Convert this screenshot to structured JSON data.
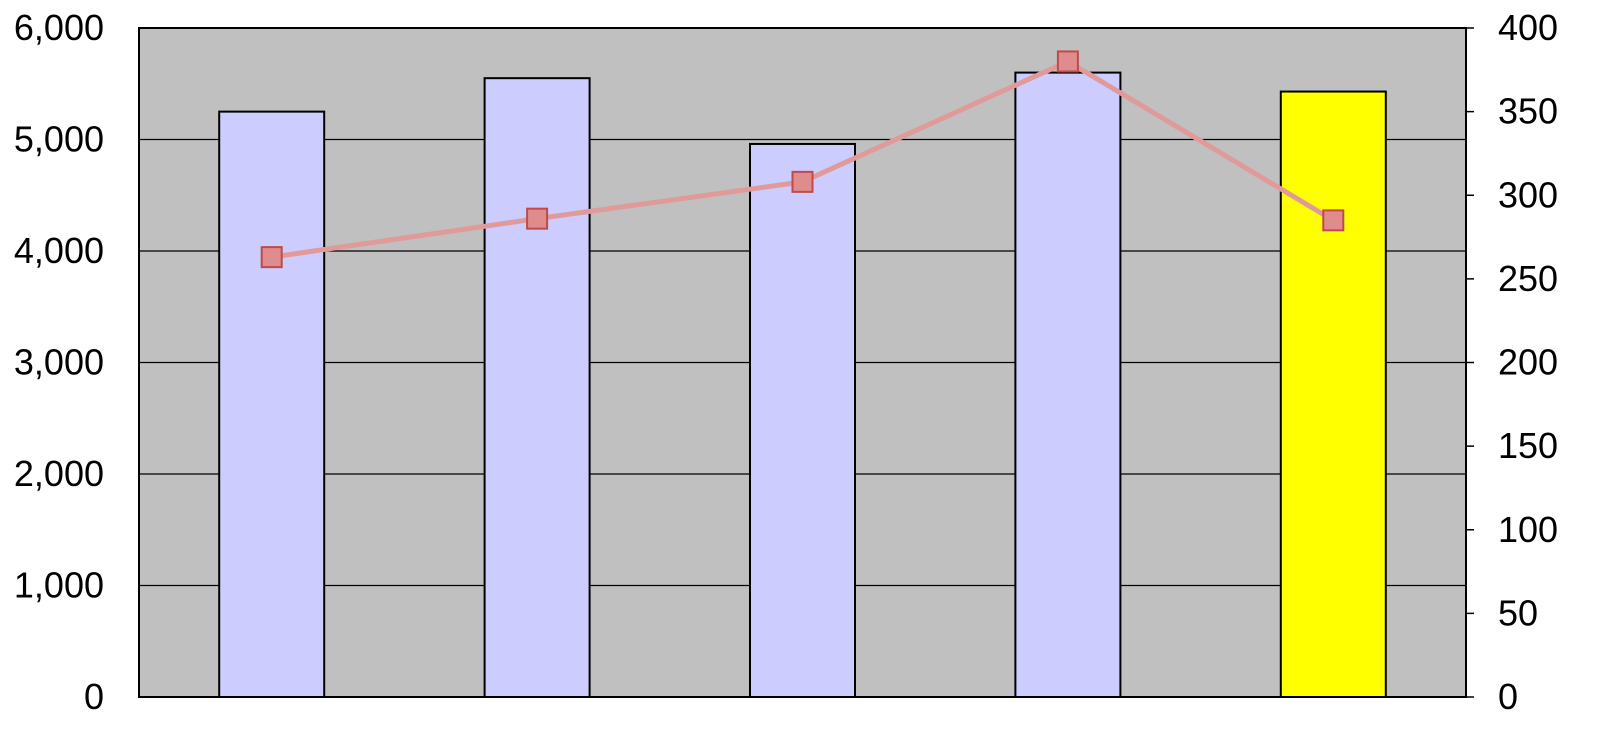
{
  "chart_data": {
    "type": "bar",
    "categories": [
      "",
      "",
      "",
      "",
      ""
    ],
    "series": [
      {
        "type": "bar",
        "axis": "left",
        "values": [
          5250,
          5550,
          4960,
          5600,
          5430
        ]
      },
      {
        "type": "line",
        "axis": "right",
        "values": [
          263,
          286,
          308,
          380,
          285
        ]
      }
    ],
    "y_left": {
      "min": 0,
      "max": 6000,
      "ticks": [
        0,
        1000,
        2000,
        3000,
        4000,
        5000,
        6000
      ],
      "tick_labels": [
        "0",
        "1,000",
        "2,000",
        "3,000",
        "4,000",
        "5,000",
        "6,000"
      ]
    },
    "y_right": {
      "min": 0,
      "max": 400,
      "ticks": [
        0,
        50,
        100,
        150,
        200,
        250,
        300,
        350,
        400
      ],
      "tick_labels": [
        "0",
        "50",
        "100",
        "150",
        "200",
        "250",
        "300",
        "350",
        "400"
      ]
    },
    "grid": true,
    "legend": "none",
    "colors": {
      "plot_background": "#c0c0c0",
      "bar_fill": "#ccccff",
      "bar_highlight_fill": "#ffff00",
      "bar_stroke": "#000000",
      "line_color": "#e09a9a",
      "marker_fill": "#e08c8c",
      "marker_stroke": "#c04a4a",
      "gridline": "#000000"
    },
    "highlight_index": 4
  }
}
